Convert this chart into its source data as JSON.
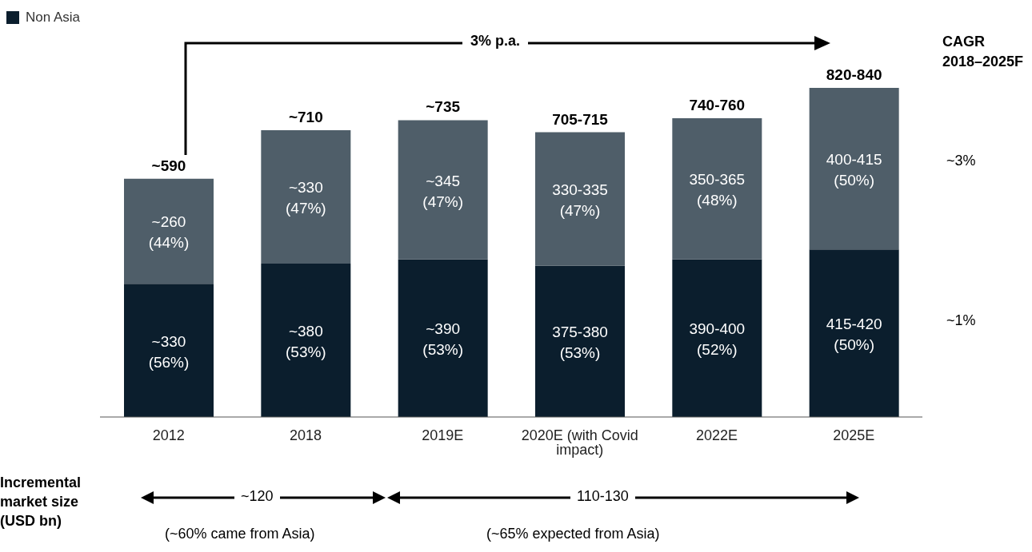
{
  "chart_data": {
    "type": "bar",
    "stacked": true,
    "categories": [
      "2012",
      "2018",
      "2019E",
      "2020E (with Covid impact)",
      "2022E",
      "2025E"
    ],
    "series": [
      {
        "name": "Non Asia",
        "color": "#0b1e2d",
        "values": [
          330,
          380,
          390,
          375,
          390,
          415
        ],
        "value_labels": [
          "~330 (56%)",
          "~380 (53%)",
          "~390 (53%)",
          "375-380 (53%)",
          "390-400 (52%)",
          "415-420 (50%)"
        ]
      },
      {
        "color": "#4f5e69",
        "values": [
          260,
          330,
          345,
          330,
          350,
          400
        ],
        "value_labels": [
          "~260 (44%)",
          "~330 (47%)",
          "~345 (47%)",
          "330-335 (47%)",
          "350-365 (48%)",
          "400-415 (50%)"
        ]
      }
    ],
    "totals": [
      "~590",
      "~710",
      "~735",
      "705-715",
      "740-760",
      "820-840"
    ],
    "legend": "top left",
    "grid": false,
    "annotations": [
      "3% p.a.",
      "CAGR 2018–2025F",
      "~3%",
      "~1%",
      "Incremental market size (USD bn)",
      "~120",
      "110-130",
      "(~60% came from Asia)",
      "(~65% expected from Asia)"
    ]
  }
}
